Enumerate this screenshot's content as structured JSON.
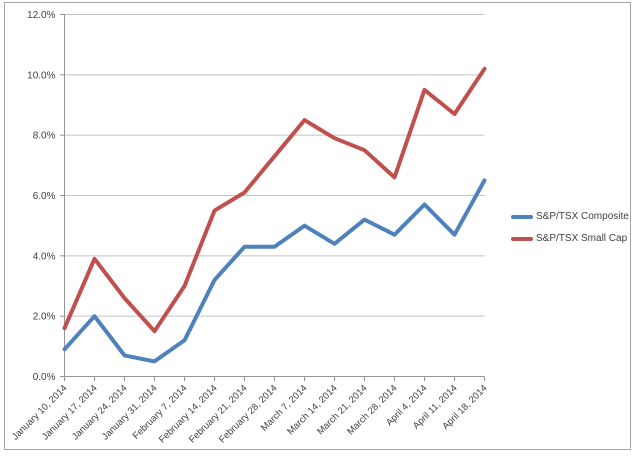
{
  "chart_data": {
    "type": "line",
    "categories": [
      "January 10, 2014",
      "January 17, 2014",
      "January 24, 2014",
      "January 31, 2014",
      "February 7, 2014",
      "February 14, 2014",
      "February 21, 2014",
      "February 28, 2014",
      "March 7, 2014",
      "March 14, 2014",
      "March 21, 2014",
      "March 28, 2014",
      "April 4, 2014",
      "April 11, 2014",
      "April 18, 2014"
    ],
    "series": [
      {
        "name": "S&P/TSX Composite",
        "color": "#4F81BD",
        "values": [
          0.9,
          2.0,
          0.7,
          0.5,
          1.2,
          3.2,
          4.3,
          4.3,
          5.0,
          4.4,
          5.2,
          4.7,
          5.7,
          4.7,
          6.5
        ]
      },
      {
        "name": "S&P/TSX Small Cap",
        "color": "#C0504D",
        "values": [
          1.6,
          3.9,
          2.6,
          1.5,
          3.0,
          5.5,
          6.1,
          7.3,
          8.5,
          7.9,
          7.5,
          6.6,
          9.5,
          8.7,
          10.2
        ]
      }
    ],
    "yticks": [
      {
        "value": 0,
        "label": "0.0%"
      },
      {
        "value": 2,
        "label": "2.0%"
      },
      {
        "value": 4,
        "label": "4.0%"
      },
      {
        "value": 6,
        "label": "6.0%"
      },
      {
        "value": 8,
        "label": "8.0%"
      },
      {
        "value": 10,
        "label": "10.0%"
      },
      {
        "value": 12,
        "label": "12.0%"
      }
    ],
    "ylim": [
      0,
      12
    ],
    "unit": "percent",
    "grid": "horizontal",
    "legend_position": "right",
    "x_label_rotation": -45,
    "colors": {
      "gridline": "#C3C3C3",
      "axis": "#949494",
      "tick_label": "#3F3F3F",
      "chart_border": "#A6A6A6",
      "background": "#FFFFFF"
    }
  }
}
